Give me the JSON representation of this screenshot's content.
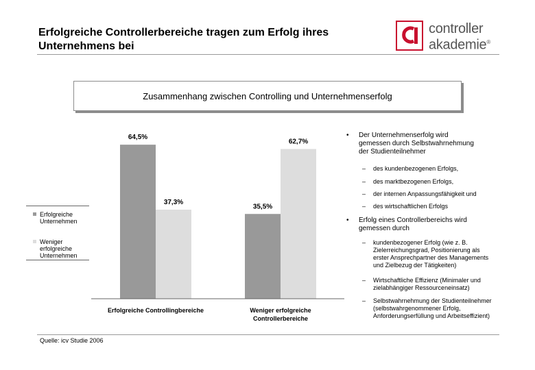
{
  "header": {
    "title_lines": [
      "Erfolgreiche Controllerbereiche tragen zum Erfolg ihres",
      "Unternehmens bei"
    ],
    "logo_line1": "controller",
    "logo_line2": "akademie",
    "logo_reg": "®"
  },
  "subtitle": "Zusammenhang zwischen Controlling und Unternehmenserfolg",
  "colors": {
    "series_1": "#999999",
    "series_2": "#dddddd",
    "logo_red": "#c8102e",
    "logo_text": "#555555"
  },
  "chart_data": {
    "type": "bar",
    "categories": [
      [
        "Erfolgreiche Controllingbereiche"
      ],
      [
        "Weniger erfolgreiche",
        "Controllerbereiche"
      ]
    ],
    "series": [
      {
        "name": "Erfolgreiche Unternehmen",
        "name_lines": [
          "Erfolgreiche",
          "Unternehmen"
        ],
        "values": [
          64.5,
          35.5
        ]
      },
      {
        "name": "Weniger erfolgreiche Unternehmen",
        "name_lines": [
          "Weniger",
          "erfolgreiche",
          "Unternehmen"
        ],
        "values": [
          37.3,
          62.7
        ]
      }
    ],
    "data_labels": [
      [
        "64,5%",
        "35,5%"
      ],
      [
        "37,3%",
        "62,7%"
      ]
    ],
    "title": "",
    "xlabel": "",
    "ylabel": "",
    "ylim": [
      0,
      70
    ],
    "legend": "left",
    "grid": false
  },
  "bullets": [
    {
      "marker": "•",
      "lines": [
        "Der Unternehmenserfolg wird",
        "gemessen durch Selbstwahrnehmung",
        "der Studienteilnehmer"
      ],
      "subs": [
        {
          "marker": "–",
          "lines": [
            "des kundenbezogenen Erfolgs,"
          ]
        },
        {
          "marker": "–",
          "lines": [
            "des marktbezogenen Erfolgs,"
          ]
        },
        {
          "marker": "–",
          "lines": [
            "der internen Anpassungsfähigkeit und"
          ]
        },
        {
          "marker": "–",
          "lines": [
            "des wirtschaftlichen Erfolgs"
          ]
        }
      ]
    },
    {
      "marker": "•",
      "lines": [
        "Erfolg eines Controllerbereichs wird",
        "gemessen durch"
      ],
      "subs": [
        {
          "marker": "–",
          "lines": [
            "kundenbezogener Erfolg (wie z. B.",
            "Zielerreichungsgrad, Positionierung als",
            "erster Ansprechpartner des Managements",
            "und Zielbezug der Tätigkeiten)"
          ]
        },
        {
          "marker": "–",
          "lines": [
            "Wirtschaftliche Effizienz (Minimaler und",
            "zielabhängiger Ressourceneinsatz)"
          ]
        },
        {
          "marker": "–",
          "lines": [
            "Selbstwahrnehmung der Studienteilnehmer",
            "(selbstwahrgenommener Erfolg,",
            "Anforderungserfüllung und Arbeitseffizient)"
          ]
        }
      ]
    }
  ],
  "source": "Quelle: icv Studie 2006"
}
